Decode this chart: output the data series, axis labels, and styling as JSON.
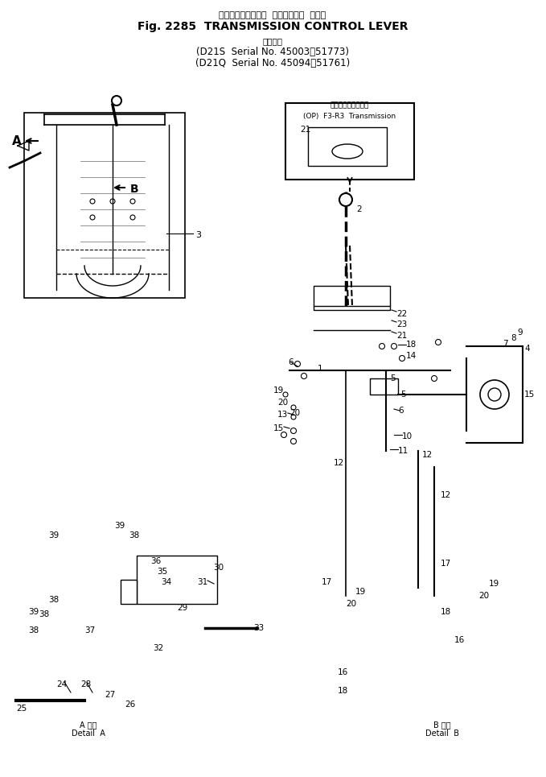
{
  "title_jp": "トランスミッション  コントロール  レバー",
  "title_en": "Fig. 2285  TRANSMISSION CONTROL LEVER",
  "serial_label_jp": "適用号機",
  "serial1": "(D21S  Serial No. 45003～51773)",
  "serial2": "(D21Q  Serial No. 45094～51761)",
  "op_label": "(OP)  F3-R3  Transmission",
  "op_label_jp": "トランスミッション",
  "detail_a_jp": "A 詳細",
  "detail_a_en": "Detail  A",
  "detail_b_jp": "B 詳細",
  "detail_b_en": "Detail  B",
  "bg_color": "#ffffff",
  "line_color": "#000000",
  "fig_width": 6.79,
  "fig_height": 9.65
}
